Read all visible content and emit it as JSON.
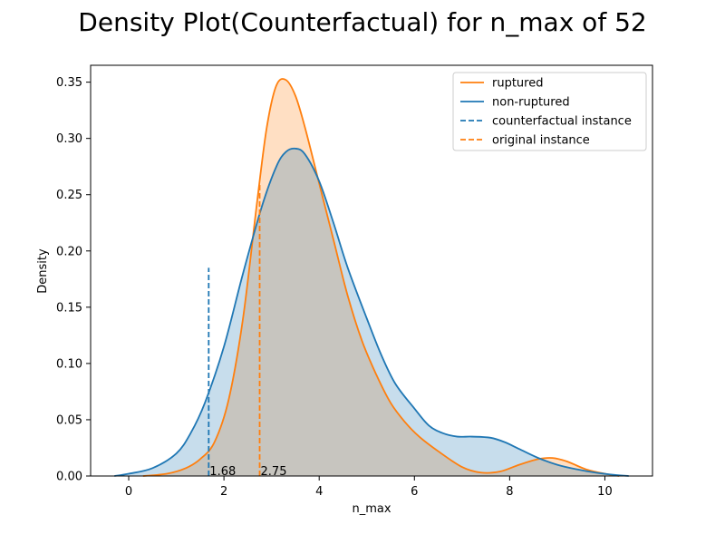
{
  "chart_data": {
    "type": "area",
    "title": "Density Plot(Counterfactual) for n_max of 52",
    "xlabel": "n_max",
    "ylabel": "Density",
    "xlim": [
      -0.8,
      11.0
    ],
    "ylim": [
      0,
      0.365
    ],
    "xticks": [
      0,
      2,
      4,
      6,
      8,
      10
    ],
    "yticks": [
      0.0,
      0.05,
      0.1,
      0.15,
      0.2,
      0.25,
      0.3,
      0.35
    ],
    "ytick_labels": [
      "0.00",
      "0.05",
      "0.10",
      "0.15",
      "0.20",
      "0.25",
      "0.30",
      "0.35"
    ],
    "grid": false,
    "legend_position": "top-right",
    "series": [
      {
        "name": "ruptured",
        "color": "#ff7f0e",
        "fill": "#ffd9bb",
        "x": [
          0.3,
          0.8,
          1.2,
          1.5,
          1.8,
          2.1,
          2.4,
          2.7,
          2.9,
          3.1,
          3.3,
          3.5,
          3.7,
          4.0,
          4.3,
          4.6,
          4.9,
          5.2,
          5.5,
          5.8,
          6.1,
          6.5,
          7.0,
          7.4,
          7.8,
          8.2,
          8.6,
          8.9,
          9.2,
          9.6,
          10.0,
          10.3
        ],
        "y": [
          0.0,
          0.002,
          0.007,
          0.015,
          0.03,
          0.068,
          0.14,
          0.245,
          0.31,
          0.347,
          0.352,
          0.338,
          0.31,
          0.26,
          0.21,
          0.16,
          0.12,
          0.09,
          0.065,
          0.048,
          0.035,
          0.022,
          0.008,
          0.003,
          0.004,
          0.01,
          0.015,
          0.016,
          0.013,
          0.006,
          0.002,
          0.0
        ]
      },
      {
        "name": "non-ruptured",
        "color": "#1f77b4",
        "fill": "#c5d8ea",
        "x": [
          -0.3,
          0.0,
          0.5,
          1.0,
          1.3,
          1.6,
          2.0,
          2.4,
          2.8,
          3.1,
          3.3,
          3.5,
          3.7,
          4.0,
          4.3,
          4.6,
          5.0,
          5.3,
          5.6,
          6.0,
          6.3,
          6.6,
          6.9,
          7.2,
          7.6,
          7.9,
          8.2,
          8.6,
          9.0,
          9.4,
          9.8,
          10.2,
          10.5
        ],
        "y": [
          0.0,
          0.002,
          0.007,
          0.02,
          0.038,
          0.065,
          0.115,
          0.18,
          0.24,
          0.275,
          0.288,
          0.291,
          0.286,
          0.262,
          0.225,
          0.185,
          0.14,
          0.108,
          0.082,
          0.06,
          0.045,
          0.038,
          0.035,
          0.035,
          0.034,
          0.03,
          0.024,
          0.016,
          0.01,
          0.006,
          0.003,
          0.001,
          0.0
        ]
      }
    ],
    "instances": [
      {
        "name": "counterfactual instance",
        "color": "#1f77b4",
        "x": 1.68,
        "y_top": 0.185,
        "label": "1.68"
      },
      {
        "name": "original instance",
        "color": "#ff7f0e",
        "x": 2.75,
        "y_top": 0.26,
        "label": "2.75"
      }
    ]
  }
}
